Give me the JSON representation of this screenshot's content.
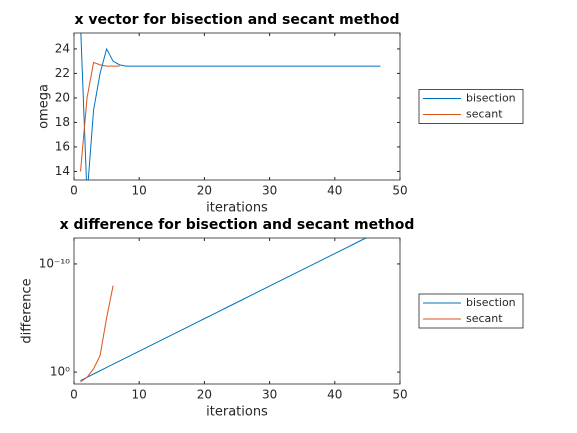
{
  "chart_data": [
    {
      "type": "line",
      "title": "x vector for bisection and secant method",
      "xlabel": "iterations",
      "ylabel": "omega",
      "xlim": [
        0,
        50
      ],
      "xticks": [
        0,
        10,
        20,
        30,
        40,
        50
      ],
      "ylim": [
        13.3,
        25.3
      ],
      "yticks": [
        14,
        16,
        18,
        20,
        22,
        24
      ],
      "log_y": false,
      "legend": "outside-right",
      "series": [
        {
          "name": "bisection",
          "color": "#0072bd",
          "x": [
            1,
            2,
            3,
            4,
            5,
            6,
            7,
            8,
            9,
            10,
            11,
            12,
            13,
            14,
            15,
            16,
            17,
            18,
            19,
            20,
            21,
            22,
            23,
            24,
            25,
            26,
            27,
            28,
            29,
            30,
            31,
            32,
            33,
            34,
            35,
            36,
            37,
            38,
            39,
            40,
            41,
            42,
            43,
            44,
            45,
            46,
            47
          ],
          "values": [
            26,
            12,
            19,
            22,
            24,
            23,
            22.7,
            22.6,
            22.6,
            22.6,
            22.6,
            22.6,
            22.6,
            22.6,
            22.6,
            22.6,
            22.6,
            22.6,
            22.6,
            22.6,
            22.6,
            22.6,
            22.6,
            22.6,
            22.6,
            22.6,
            22.6,
            22.6,
            22.6,
            22.6,
            22.6,
            22.6,
            22.6,
            22.6,
            22.6,
            22.6,
            22.6,
            22.6,
            22.6,
            22.6,
            22.6,
            22.6,
            22.6,
            22.6,
            22.6,
            22.6,
            22.6
          ]
        },
        {
          "name": "secant",
          "color": "#d95319",
          "x": [
            1,
            2,
            3,
            4,
            5,
            6,
            7
          ],
          "values": [
            14,
            20,
            22.9,
            22.7,
            22.6,
            22.6,
            22.6
          ]
        }
      ]
    },
    {
      "type": "line",
      "title": "x difference for bisection and secant method",
      "xlabel": "iterations",
      "ylabel": "difference",
      "xlim": [
        0,
        50
      ],
      "xticks": [
        0,
        10,
        20,
        30,
        40,
        50
      ],
      "ylim": [
        12.6,
        4e-13
      ],
      "yticks": [
        {
          "value": 1,
          "label": "10⁰"
        },
        {
          "value": 1e-10,
          "label": "10⁻¹⁰"
        }
      ],
      "log_y": true,
      "legend": "outside-right",
      "series": [
        {
          "name": "bisection",
          "color": "#0072bd",
          "x": [
            1,
            2,
            3,
            4,
            5,
            6,
            7,
            8,
            9,
            10,
            11,
            12,
            13,
            14,
            15,
            16,
            17,
            18,
            19,
            20,
            21,
            22,
            23,
            24,
            25,
            26,
            27,
            28,
            29,
            30,
            31,
            32,
            33,
            34,
            35,
            36,
            37,
            38,
            39,
            40,
            41,
            42,
            43,
            44,
            45,
            46
          ],
          "values": [
            6,
            3,
            1.5,
            0.75,
            0.375,
            0.1875,
            0.09375,
            0.046875,
            0.0234,
            0.0117,
            0.00586,
            0.00293,
            0.00146,
            0.000732,
            0.000366,
            0.000183,
            9.16e-05,
            4.58e-05,
            2.29e-05,
            1.14e-05,
            5.72e-06,
            2.86e-06,
            1.43e-06,
            7.15e-07,
            3.58e-07,
            1.79e-07,
            8.94e-08,
            4.47e-08,
            2.24e-08,
            1.12e-08,
            5.59e-09,
            2.79e-09,
            1.4e-09,
            6.98e-10,
            3.49e-10,
            1.75e-10,
            8.73e-11,
            4.37e-11,
            2.18e-11,
            1.09e-11,
            5.46e-12,
            2.73e-12,
            1.36e-12,
            6.82e-13,
            3.41e-13,
            1.71e-13
          ]
        },
        {
          "name": "secant",
          "color": "#d95319",
          "x": [
            1,
            2,
            3,
            4,
            5,
            6
          ],
          "values": [
            8,
            3,
            0.5,
            0.03,
            1e-05,
            1e-08
          ]
        }
      ]
    }
  ]
}
